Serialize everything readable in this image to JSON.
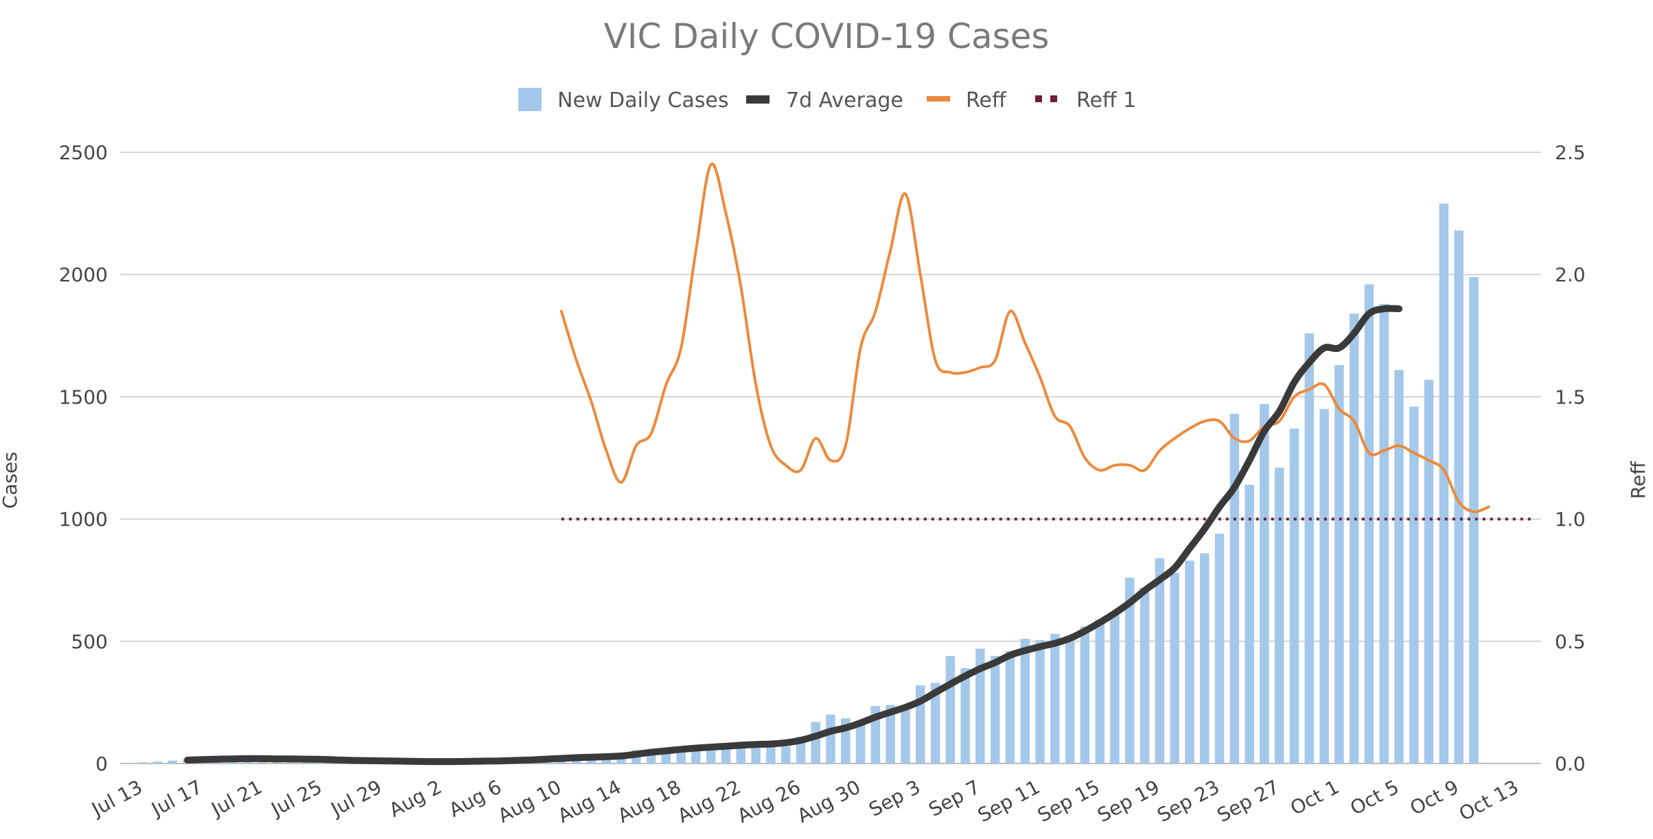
{
  "chart_data": {
    "type": "bar",
    "title": "VIC Daily COVID-19 Cases",
    "ylabel": "Cases",
    "y2label": "Reff",
    "ylim": [
      0,
      2500
    ],
    "y2lim": [
      0,
      2.5
    ],
    "y_ticks": [
      "0",
      "500",
      "1000",
      "1500",
      "2000",
      "2500"
    ],
    "y2_ticks": [
      "0.0",
      "0.5",
      "1.0",
      "1.5",
      "2.0",
      "2.5"
    ],
    "x_start": "Jul 13",
    "day_count": 95,
    "x_tick_labels": [
      "Jul 13",
      "Jul 17",
      "Jul 21",
      "Jul 25",
      "Jul 29",
      "Aug 2",
      "Aug 6",
      "Aug 10",
      "Aug 14",
      "Aug 18",
      "Aug 22",
      "Aug 26",
      "Aug 30",
      "Sep 3",
      "Sep 7",
      "Sep 11",
      "Sep 15",
      "Sep 19",
      "Sep 23",
      "Sep 27",
      "Oct 1",
      "Oct 5",
      "Oct 9",
      "Oct 13"
    ],
    "legend_position": "top",
    "grid": true,
    "colors": {
      "bars": "#a4c8ea",
      "avg": "#3a3a3a",
      "reff": "#ec8a3c",
      "reff1": "#6b1e3c",
      "grid": "#d4d4d4"
    },
    "series": [
      {
        "name": "New Daily Cases",
        "kind": "bar",
        "values": [
          2,
          5,
          8,
          12,
          18,
          22,
          25,
          20,
          18,
          16,
          15,
          14,
          12,
          10,
          8,
          7,
          5,
          4,
          3,
          2,
          3,
          4,
          5,
          8,
          10,
          12,
          15,
          18,
          20,
          22,
          25,
          30,
          35,
          40,
          55,
          45,
          50,
          60,
          65,
          60,
          70,
          75,
          80,
          85,
          70,
          110,
          170,
          200,
          185,
          165,
          235,
          240,
          225,
          320,
          330,
          440,
          390,
          470,
          440,
          460,
          510,
          505,
          530,
          500,
          560,
          590,
          620,
          760,
          720,
          840,
          780,
          830,
          860,
          940,
          1430,
          1140,
          1470,
          1210,
          1370,
          1760,
          1450,
          1630,
          1840,
          1960,
          1880,
          1610,
          1460,
          1570,
          2290,
          2180,
          1990
        ]
      },
      {
        "name": "7d Average",
        "kind": "line",
        "x_start_index": 4,
        "values": [
          14,
          16,
          18,
          19,
          20,
          20,
          19,
          19,
          18,
          17,
          15,
          13,
          12,
          11,
          10,
          9,
          8,
          8,
          8,
          9,
          10,
          11,
          13,
          15,
          18,
          21,
          24,
          26,
          28,
          31,
          38,
          46,
          52,
          58,
          63,
          67,
          71,
          75,
          78,
          80,
          85,
          95,
          112,
          132,
          146,
          166,
          190,
          210,
          230,
          255,
          290,
          325,
          358,
          388,
          413,
          443,
          462,
          478,
          492,
          512,
          542,
          577,
          615,
          658,
          708,
          752,
          800,
          880,
          960,
          1050,
          1130,
          1240,
          1360,
          1440,
          1560,
          1640,
          1700,
          1700,
          1760,
          1840,
          1860,
          1860
        ]
      },
      {
        "name": "Reff",
        "kind": "line",
        "axis": "right",
        "x_start_index": 29,
        "values": [
          1.85,
          1.65,
          1.48,
          1.28,
          1.15,
          1.3,
          1.35,
          1.55,
          1.7,
          2.1,
          2.45,
          2.25,
          1.95,
          1.55,
          1.3,
          1.22,
          1.2,
          1.33,
          1.24,
          1.3,
          1.7,
          1.85,
          2.1,
          2.33,
          2.0,
          1.65,
          1.6,
          1.6,
          1.62,
          1.65,
          1.85,
          1.72,
          1.58,
          1.42,
          1.38,
          1.25,
          1.2,
          1.22,
          1.22,
          1.2,
          1.28,
          1.33,
          1.37,
          1.4,
          1.4,
          1.33,
          1.32,
          1.38,
          1.4,
          1.5,
          1.53,
          1.55,
          1.45,
          1.4,
          1.27,
          1.28,
          1.3,
          1.27,
          1.24,
          1.2,
          1.07,
          1.03,
          1.05
        ]
      },
      {
        "name": "Reff 1",
        "kind": "dotted-line",
        "axis": "right",
        "x_start_index": 29,
        "value": 1.0
      }
    ]
  }
}
